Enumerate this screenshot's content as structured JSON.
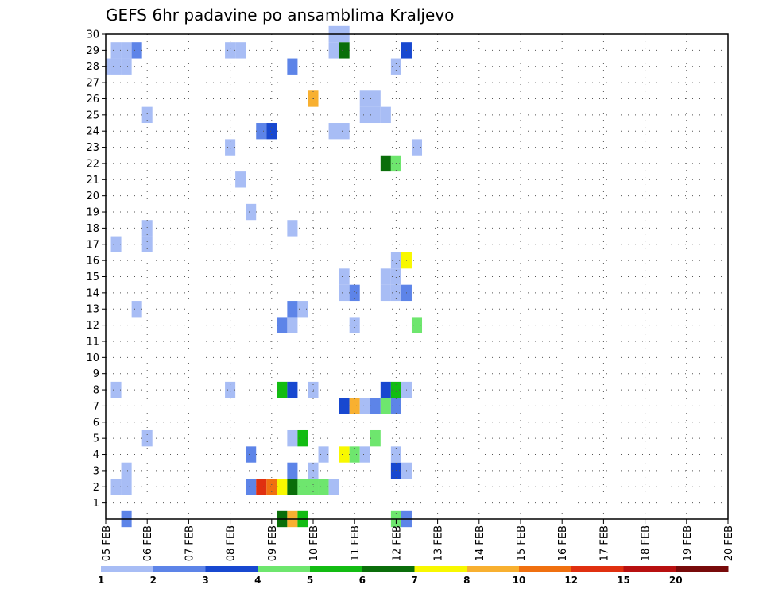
{
  "chart_data": {
    "type": "heatmap",
    "title": "GEFS 6hr padavine po ansamblima Kraljevo",
    "x_labels": [
      "05 FEB",
      "06 FEB",
      "07 FEB",
      "08 FEB",
      "09 FEB",
      "10 FEB",
      "11 FEB",
      "12 FEB",
      "13 FEB",
      "14 FEB",
      "15 FEB",
      "16 FEB",
      "17 FEB",
      "18 FEB",
      "19 FEB",
      "20 FEB"
    ],
    "y_labels": [
      "1",
      "2",
      "3",
      "4",
      "5",
      "6",
      "7",
      "8",
      "9",
      "10",
      "11",
      "12",
      "13",
      "14",
      "15",
      "16",
      "17",
      "18",
      "19",
      "20",
      "21",
      "22",
      "23",
      "24",
      "25",
      "26",
      "27",
      "28",
      "29",
      "30"
    ],
    "x_range_days": [
      0,
      15
    ],
    "y_range": [
      0,
      30
    ],
    "time_step_hours": 6,
    "grid": "dotted",
    "legend_position": "bottom",
    "color_scale": {
      "labels": [
        "1",
        "2",
        "3",
        "4",
        "5",
        "6",
        "7",
        "8",
        "10",
        "12",
        "15",
        "20"
      ],
      "colors": [
        "#a8bdf5",
        "#5d84e8",
        "#1848d0",
        "#6ee66e",
        "#12bc12",
        "#0a6e0a",
        "#f8f800",
        "#f8b030",
        "#f07010",
        "#e03010",
        "#b81010",
        "#780a0a"
      ]
    },
    "cells": [
      {
        "t": 1,
        "m": 2,
        "c": 1
      },
      {
        "t": 2,
        "m": 2,
        "c": 1
      },
      {
        "t": 2,
        "m": 3,
        "c": 1
      },
      {
        "t": 14,
        "m": 2,
        "c": 2
      },
      {
        "t": 15,
        "m": 2,
        "c": 10
      },
      {
        "t": 16,
        "m": 2,
        "c": 9
      },
      {
        "t": 17,
        "m": 2,
        "c": 7
      },
      {
        "t": 18,
        "m": 2,
        "c": 6
      },
      {
        "t": 19,
        "m": 2,
        "c": 4
      },
      {
        "t": 20,
        "m": 2,
        "c": 4
      },
      {
        "t": 21,
        "m": 2,
        "c": 4
      },
      {
        "t": 22,
        "m": 2,
        "c": 1
      },
      {
        "t": 18,
        "m": 3,
        "c": 2
      },
      {
        "t": 20,
        "m": 3,
        "c": 1
      },
      {
        "t": 28,
        "m": 3,
        "c": 3
      },
      {
        "t": 29,
        "m": 3,
        "c": 1
      },
      {
        "t": 14,
        "m": 4,
        "c": 2
      },
      {
        "t": 21,
        "m": 4,
        "c": 1
      },
      {
        "t": 23,
        "m": 4,
        "c": 7
      },
      {
        "t": 24,
        "m": 4,
        "c": 4
      },
      {
        "t": 25,
        "m": 4,
        "c": 1
      },
      {
        "t": 28,
        "m": 4,
        "c": 1
      },
      {
        "t": 4,
        "m": 5,
        "c": 1
      },
      {
        "t": 18,
        "m": 5,
        "c": 1
      },
      {
        "t": 19,
        "m": 5,
        "c": 5
      },
      {
        "t": 26,
        "m": 5,
        "c": 4
      },
      {
        "t": 23,
        "m": 7,
        "c": 3
      },
      {
        "t": 24,
        "m": 7,
        "c": 8
      },
      {
        "t": 25,
        "m": 7,
        "c": 1
      },
      {
        "t": 26,
        "m": 7,
        "c": 2
      },
      {
        "t": 27,
        "m": 7,
        "c": 4
      },
      {
        "t": 28,
        "m": 7,
        "c": 2
      },
      {
        "t": 1,
        "m": 8,
        "c": 1
      },
      {
        "t": 12,
        "m": 8,
        "c": 1
      },
      {
        "t": 17,
        "m": 8,
        "c": 5
      },
      {
        "t": 18,
        "m": 8,
        "c": 3
      },
      {
        "t": 20,
        "m": 8,
        "c": 1
      },
      {
        "t": 27,
        "m": 8,
        "c": 3
      },
      {
        "t": 28,
        "m": 8,
        "c": 5
      },
      {
        "t": 29,
        "m": 8,
        "c": 1
      },
      {
        "t": 17,
        "m": 12,
        "c": 2
      },
      {
        "t": 18,
        "m": 12,
        "c": 1
      },
      {
        "t": 24,
        "m": 12,
        "c": 1
      },
      {
        "t": 30,
        "m": 12,
        "c": 4
      },
      {
        "t": 3,
        "m": 13,
        "c": 1
      },
      {
        "t": 18,
        "m": 13,
        "c": 2
      },
      {
        "t": 19,
        "m": 13,
        "c": 1
      },
      {
        "t": 23,
        "m": 14,
        "c": 1
      },
      {
        "t": 24,
        "m": 14,
        "c": 2
      },
      {
        "t": 27,
        "m": 14,
        "c": 1
      },
      {
        "t": 28,
        "m": 14,
        "c": 1
      },
      {
        "t": 29,
        "m": 14,
        "c": 2
      },
      {
        "t": 23,
        "m": 15,
        "c": 1
      },
      {
        "t": 27,
        "m": 15,
        "c": 1
      },
      {
        "t": 28,
        "m": 15,
        "c": 1
      },
      {
        "t": 28,
        "m": 16,
        "c": 1
      },
      {
        "t": 29,
        "m": 16,
        "c": 7
      },
      {
        "t": 1,
        "m": 17,
        "c": 1
      },
      {
        "t": 4,
        "m": 17,
        "c": 1
      },
      {
        "t": 4,
        "m": 18,
        "c": 1
      },
      {
        "t": 18,
        "m": 18,
        "c": 1
      },
      {
        "t": 14,
        "m": 19,
        "c": 1
      },
      {
        "t": 13,
        "m": 21,
        "c": 1
      },
      {
        "t": 27,
        "m": 22,
        "c": 6
      },
      {
        "t": 28,
        "m": 22,
        "c": 4
      },
      {
        "t": 12,
        "m": 23,
        "c": 1
      },
      {
        "t": 30,
        "m": 23,
        "c": 1
      },
      {
        "t": 15,
        "m": 24,
        "c": 2
      },
      {
        "t": 16,
        "m": 24,
        "c": 3
      },
      {
        "t": 22,
        "m": 24,
        "c": 1
      },
      {
        "t": 23,
        "m": 24,
        "c": 1
      },
      {
        "t": 4,
        "m": 25,
        "c": 1
      },
      {
        "t": 25,
        "m": 25,
        "c": 1
      },
      {
        "t": 26,
        "m": 25,
        "c": 1
      },
      {
        "t": 27,
        "m": 25,
        "c": 1
      },
      {
        "t": 20,
        "m": 26,
        "c": 8
      },
      {
        "t": 25,
        "m": 26,
        "c": 1
      },
      {
        "t": 26,
        "m": 26,
        "c": 1
      },
      {
        "t": 0,
        "m": 28,
        "c": 1
      },
      {
        "t": 1,
        "m": 28,
        "c": 1
      },
      {
        "t": 2,
        "m": 28,
        "c": 1
      },
      {
        "t": 18,
        "m": 28,
        "c": 2
      },
      {
        "t": 28,
        "m": 28,
        "c": 1
      },
      {
        "t": 1,
        "m": 29,
        "c": 1
      },
      {
        "t": 2,
        "m": 29,
        "c": 1
      },
      {
        "t": 3,
        "m": 29,
        "c": 2
      },
      {
        "t": 12,
        "m": 29,
        "c": 1
      },
      {
        "t": 13,
        "m": 29,
        "c": 1
      },
      {
        "t": 22,
        "m": 29,
        "c": 1
      },
      {
        "t": 23,
        "m": 29,
        "c": 6
      },
      {
        "t": 29,
        "m": 29,
        "c": 3
      },
      {
        "t": 22,
        "m": 30,
        "c": 1
      },
      {
        "t": 23,
        "m": 30,
        "c": 1
      },
      {
        "t": 2,
        "m": 0,
        "c": 2
      },
      {
        "t": 17,
        "m": 0,
        "c": 6
      },
      {
        "t": 18,
        "m": 0,
        "c": 8
      },
      {
        "t": 19,
        "m": 0,
        "c": 5
      },
      {
        "t": 28,
        "m": 0,
        "c": 4
      },
      {
        "t": 29,
        "m": 0,
        "c": 2
      }
    ]
  }
}
